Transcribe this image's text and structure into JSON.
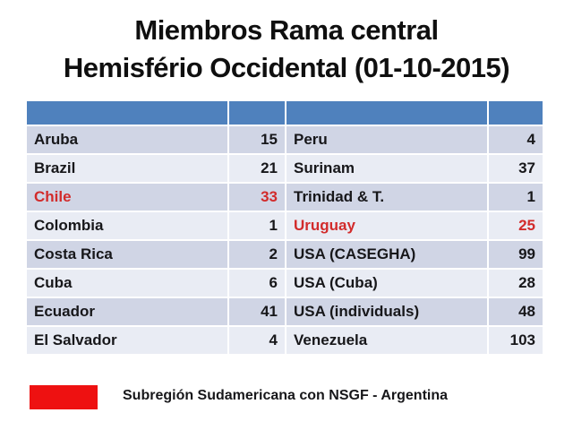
{
  "title": {
    "line1": "Miembros Rama central",
    "line2": "Hemisfério Occidental (01-10-2015)"
  },
  "table": {
    "header_labels": [
      "",
      "",
      "",
      ""
    ],
    "rows": [
      {
        "country_a": "Aruba",
        "members_a": "15",
        "country_b": "Peru",
        "members_b": "4"
      },
      {
        "country_a": "Brazil",
        "members_a": "21",
        "country_b": "Surinam",
        "members_b": "37"
      },
      {
        "country_a": "Chile",
        "members_a": "33",
        "country_b": "Trinidad & T.",
        "members_b": "1",
        "highlight_a": true
      },
      {
        "country_a": "Colombia",
        "members_a": "1",
        "country_b": "Uruguay",
        "members_b": "25",
        "highlight_b": true
      },
      {
        "country_a": "Costa Rica",
        "members_a": "2",
        "country_b": "USA (CASEGHA)",
        "members_b": "99"
      },
      {
        "country_a": "Cuba",
        "members_a": "6",
        "country_b": "USA (Cuba)",
        "members_b": "28"
      },
      {
        "country_a": "Ecuador",
        "members_a": "41",
        "country_b": "USA (individuals)",
        "members_b": "48"
      },
      {
        "country_a": "El Salvador",
        "members_a": "4",
        "country_b": "Venezuela",
        "members_b": "103"
      }
    ],
    "highlighted_entries": [
      "Chile",
      "Uruguay"
    ]
  },
  "footer": {
    "legend_caption": "Subregión Sudamericana con NSGF - Argentina"
  },
  "colors": {
    "header_blue": "#4F81BD",
    "row_dark": "#D0D5E5",
    "row_light": "#E9ECF4",
    "highlight_red": "#D22B2B",
    "legend_swatch_red": "#EE1111",
    "text_black": "#17171a"
  }
}
